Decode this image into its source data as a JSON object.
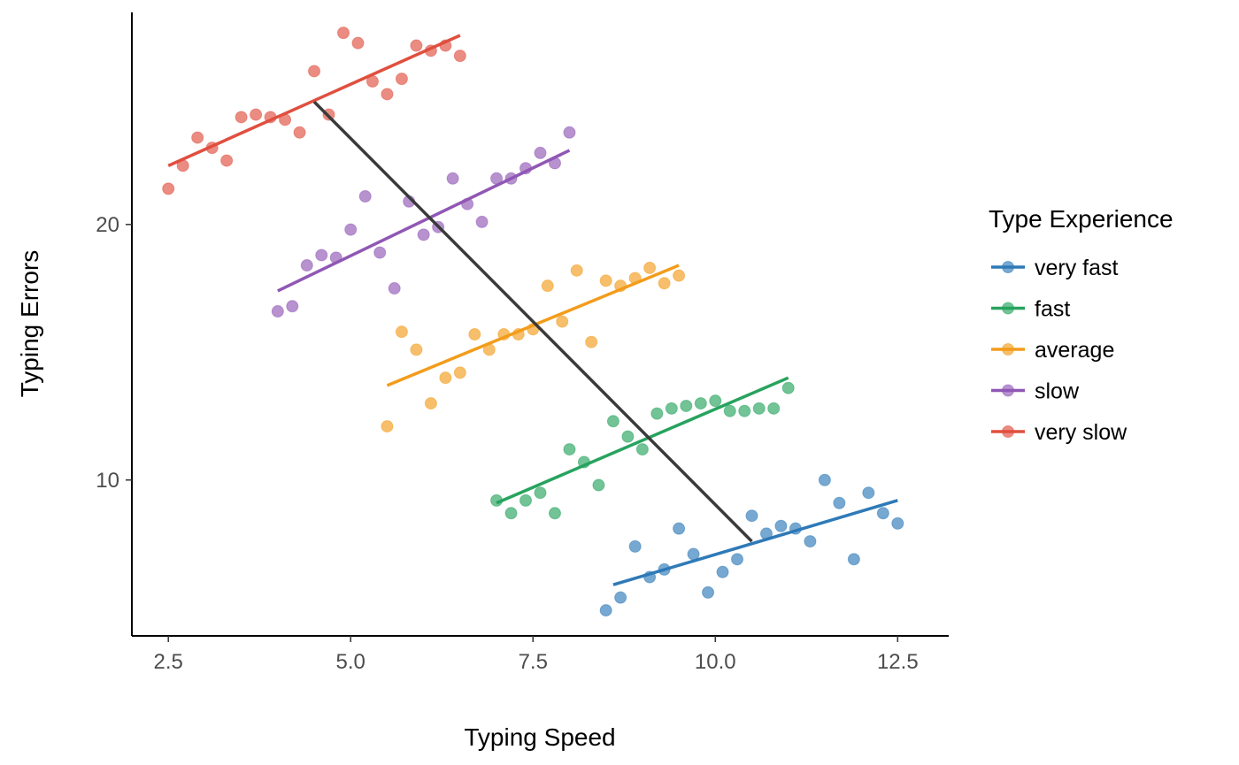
{
  "chart_data": {
    "type": "scatter",
    "title": "",
    "xlabel": "Typing Speed",
    "ylabel": "Typing Errors",
    "xlim": [
      2.0,
      13.2
    ],
    "ylim": [
      3.9,
      28.3
    ],
    "x_ticks": [
      2.5,
      5.0,
      7.5,
      10.0,
      12.5
    ],
    "x_tick_labels": [
      "2.5",
      "5.0",
      "7.5",
      "10.0",
      "12.5"
    ],
    "y_ticks": [
      10,
      20
    ],
    "y_tick_labels": [
      "10",
      "20"
    ],
    "grid": false,
    "legend": {
      "title": "Type Experience",
      "placement": "right",
      "entries": [
        "very fast",
        "fast",
        "average",
        "slow",
        "very slow"
      ]
    },
    "series": [
      {
        "name": "very fast",
        "color": "#2e7ab8",
        "points": [
          [
            8.5,
            4.9
          ],
          [
            8.7,
            5.4
          ],
          [
            8.9,
            7.4
          ],
          [
            9.1,
            6.2
          ],
          [
            9.3,
            6.5
          ],
          [
            9.5,
            8.1
          ],
          [
            9.7,
            7.1
          ],
          [
            9.9,
            5.6
          ],
          [
            10.1,
            6.4
          ],
          [
            10.3,
            6.9
          ],
          [
            10.5,
            8.6
          ],
          [
            10.7,
            7.9
          ],
          [
            10.9,
            8.2
          ],
          [
            11.1,
            8.1
          ],
          [
            11.3,
            7.6
          ],
          [
            11.5,
            10.0
          ],
          [
            11.7,
            9.1
          ],
          [
            11.9,
            6.9
          ],
          [
            12.1,
            9.5
          ],
          [
            12.3,
            8.7
          ],
          [
            12.5,
            8.3
          ]
        ],
        "fit": [
          [
            8.6,
            5.9
          ],
          [
            12.5,
            9.2
          ]
        ]
      },
      {
        "name": "fast",
        "color": "#27a35e",
        "points": [
          [
            7.0,
            9.2
          ],
          [
            7.2,
            8.7
          ],
          [
            7.4,
            9.2
          ],
          [
            7.6,
            9.5
          ],
          [
            7.8,
            8.7
          ],
          [
            8.0,
            11.2
          ],
          [
            8.2,
            10.7
          ],
          [
            8.4,
            9.8
          ],
          [
            8.6,
            12.3
          ],
          [
            8.8,
            11.7
          ],
          [
            9.0,
            11.2
          ],
          [
            9.2,
            12.6
          ],
          [
            9.4,
            12.8
          ],
          [
            9.6,
            12.9
          ],
          [
            9.8,
            13.0
          ],
          [
            10.0,
            13.1
          ],
          [
            10.2,
            12.7
          ],
          [
            10.4,
            12.7
          ],
          [
            10.6,
            12.8
          ],
          [
            10.8,
            12.8
          ],
          [
            11.0,
            13.6
          ]
        ],
        "fit": [
          [
            7.0,
            9.1
          ],
          [
            11.0,
            14.0
          ]
        ]
      },
      {
        "name": "average",
        "color": "#f39c1b",
        "points": [
          [
            5.5,
            12.1
          ],
          [
            5.7,
            15.8
          ],
          [
            5.9,
            15.1
          ],
          [
            6.1,
            13.0
          ],
          [
            6.3,
            14.0
          ],
          [
            6.5,
            14.2
          ],
          [
            6.7,
            15.7
          ],
          [
            6.9,
            15.1
          ],
          [
            7.1,
            15.7
          ],
          [
            7.3,
            15.7
          ],
          [
            7.5,
            15.9
          ],
          [
            7.7,
            17.6
          ],
          [
            7.9,
            16.2
          ],
          [
            8.1,
            18.2
          ],
          [
            8.3,
            15.4
          ],
          [
            8.5,
            17.8
          ],
          [
            8.7,
            17.6
          ],
          [
            8.9,
            17.9
          ],
          [
            9.1,
            18.3
          ],
          [
            9.3,
            17.7
          ],
          [
            9.5,
            18.0
          ]
        ],
        "fit": [
          [
            5.5,
            13.7
          ],
          [
            9.5,
            18.4
          ]
        ]
      },
      {
        "name": "slow",
        "color": "#9057b5",
        "points": [
          [
            4.0,
            16.6
          ],
          [
            4.2,
            16.8
          ],
          [
            4.4,
            18.4
          ],
          [
            4.6,
            18.8
          ],
          [
            4.8,
            18.7
          ],
          [
            5.0,
            19.8
          ],
          [
            5.2,
            21.1
          ],
          [
            5.4,
            18.9
          ],
          [
            5.6,
            17.5
          ],
          [
            5.8,
            20.9
          ],
          [
            6.0,
            19.6
          ],
          [
            6.2,
            19.9
          ],
          [
            6.4,
            21.8
          ],
          [
            6.6,
            20.8
          ],
          [
            6.8,
            20.1
          ],
          [
            7.0,
            21.8
          ],
          [
            7.2,
            21.8
          ],
          [
            7.4,
            22.2
          ],
          [
            7.6,
            22.8
          ],
          [
            7.8,
            22.4
          ],
          [
            8.0,
            23.6
          ]
        ],
        "fit": [
          [
            4.0,
            17.4
          ],
          [
            8.0,
            22.9
          ]
        ]
      },
      {
        "name": "very slow",
        "color": "#e04f3f",
        "points": [
          [
            2.5,
            21.4
          ],
          [
            2.7,
            22.3
          ],
          [
            2.9,
            23.4
          ],
          [
            3.1,
            23.0
          ],
          [
            3.3,
            22.5
          ],
          [
            3.5,
            24.2
          ],
          [
            3.7,
            24.3
          ],
          [
            3.9,
            24.2
          ],
          [
            4.1,
            24.1
          ],
          [
            4.3,
            23.6
          ],
          [
            4.5,
            26.0
          ],
          [
            4.7,
            24.3
          ],
          [
            4.9,
            27.5
          ],
          [
            5.1,
            27.1
          ],
          [
            5.3,
            25.6
          ],
          [
            5.5,
            25.1
          ],
          [
            5.7,
            25.7
          ],
          [
            5.9,
            27.0
          ],
          [
            6.1,
            26.8
          ],
          [
            6.3,
            27.0
          ],
          [
            6.5,
            26.6
          ]
        ],
        "fit": [
          [
            2.5,
            22.3
          ],
          [
            6.5,
            27.4
          ]
        ]
      }
    ],
    "overall_trend": {
      "color": "#3a3a3a",
      "points": [
        [
          4.5,
          24.8
        ],
        [
          10.5,
          7.6
        ]
      ]
    }
  }
}
